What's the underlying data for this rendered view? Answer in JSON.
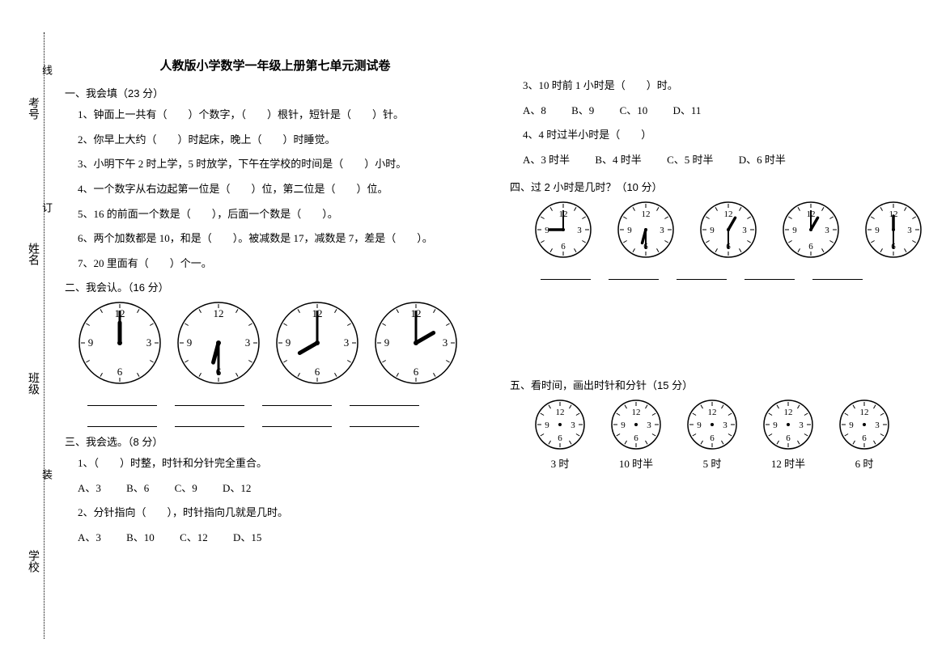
{
  "binding": {
    "labels": [
      "考号",
      "姓名",
      "班级",
      "学校"
    ],
    "marks": [
      "线",
      "订",
      "装"
    ]
  },
  "title": "人教版小学数学一年级上册第七单元测试卷",
  "sec1": {
    "heading": "一、我会填（23 分）",
    "items": [
      "1、钟面上一共有（　　）个数字，（　　）根针，短针是（　　）针。",
      "2、你早上大约（　　）时起床，晚上（　　）时睡觉。",
      "3、小明下午 2 时上学，5 时放学，下午在学校的时间是（　　）小时。",
      "4、一个数字从右边起第一位是（　　）位，第二位是（　　）位。",
      "5、16 的前面一个数是（　　），后面一个数是（　　）。",
      "6、两个加数都是 10，和是（　　）。被减数是 17，减数是 7，差是（　　）。",
      "7、20 里面有（　　）个一。"
    ]
  },
  "sec2": {
    "heading": "二、我会认。（16 分）",
    "clocks": [
      {
        "radius": 50,
        "hour": 12,
        "min": 0
      },
      {
        "radius": 50,
        "hour": 6,
        "min": 30
      },
      {
        "radius": 50,
        "hour": 8,
        "min": 0
      },
      {
        "radius": 50,
        "hour": 2,
        "min": 0
      }
    ]
  },
  "sec3": {
    "heading": "三、我会选。（8 分）",
    "q1": "1、（　　）时整，时针和分针完全重合。",
    "q1opts": [
      "A、3",
      "B、6",
      "C、9",
      "D、12"
    ],
    "q2": "2、分针指向（　　），时针指向几就是几时。",
    "q2opts": [
      "A、3",
      "B、10",
      "C、12",
      "D、15"
    ],
    "q3": "3、10 时前 1 小时是（　　）时。",
    "q3opts": [
      "A、8",
      "B、9",
      "C、10",
      "D、11"
    ],
    "q4": "4、4 时过半小时是（　　）",
    "q4opts": [
      "A、3 时半",
      "B、4 时半",
      "C、5 时半",
      "D、6 时半"
    ]
  },
  "sec4": {
    "heading": "四、过 2 小时是几时？（10 分）",
    "clocks": [
      {
        "radius": 34,
        "hour": 9,
        "min": 0
      },
      {
        "radius": 34,
        "hour": 6,
        "min": 30
      },
      {
        "radius": 34,
        "hour": 12.5,
        "min": 30
      },
      {
        "radius": 34,
        "hour": 1,
        "min": 0
      },
      {
        "radius": 34,
        "hour": 11.5,
        "min": 30
      }
    ]
  },
  "sec5": {
    "heading": "五、看时间，画出时针和分针（15 分）",
    "clocks": [
      {
        "radius": 30,
        "label": "3 时"
      },
      {
        "radius": 30,
        "label": "10 时半"
      },
      {
        "radius": 30,
        "label": "5 时"
      },
      {
        "radius": 30,
        "label": "12 时半"
      },
      {
        "radius": 30,
        "label": "6 时"
      }
    ]
  },
  "clockStyle": {
    "face_stroke": "#000",
    "face_fill": "#fff",
    "tick_stroke": "#000",
    "num_font": "12px SimSun",
    "hand_stroke": "#000",
    "nums": [
      "12",
      "3",
      "6",
      "9"
    ]
  }
}
